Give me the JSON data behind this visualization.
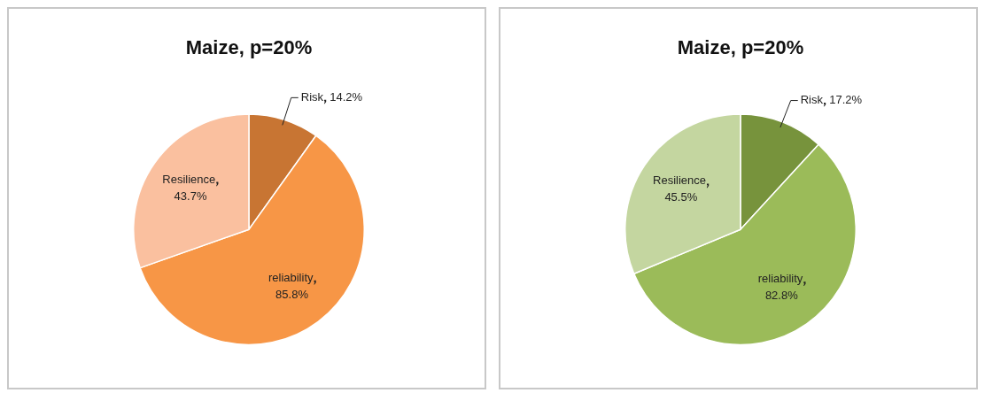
{
  "chart_data": [
    {
      "type": "pie",
      "title": "Maize, p=20%",
      "categories": [
        "Risk",
        "reliability",
        "Resilience"
      ],
      "values": [
        14.2,
        85.8,
        43.7
      ],
      "colors": [
        "#c87533",
        "#f79646",
        "#fac09f"
      ],
      "value_labels": [
        "14.2%",
        "85.8%",
        "43.7%"
      ]
    },
    {
      "type": "pie",
      "title": "Maize, p=20%",
      "categories": [
        "Risk",
        "reliability",
        "Resilience"
      ],
      "values": [
        17.2,
        82.8,
        45.5
      ],
      "colors": [
        "#77933c",
        "#9bbb59",
        "#c4d6a0"
      ],
      "value_labels": [
        "17.2%",
        "82.8%",
        "45.5%"
      ]
    }
  ]
}
